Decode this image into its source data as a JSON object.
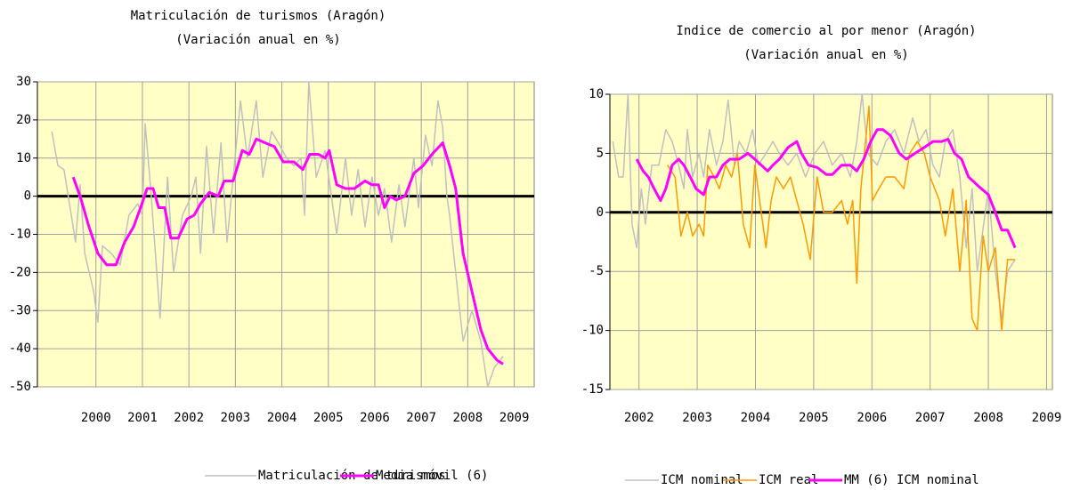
{
  "chart_data": [
    {
      "type": "line",
      "title": "Matriculación de turismos (Aragón)",
      "subtitle": "(Variación anual en %)",
      "xlim": [
        1998.74,
        2009.43
      ],
      "xticks": [
        2000,
        2001,
        2002,
        2003,
        2004,
        2005,
        2006,
        2007,
        2008,
        2009
      ],
      "ylim": [
        -50,
        30
      ],
      "yticks": [
        -50,
        -40,
        -30,
        -20,
        -10,
        0,
        10,
        20,
        30
      ],
      "grid": true,
      "zero_line": true,
      "legend": "bottom",
      "series": [
        {
          "name": "Matriculación de turismos",
          "color": "#c0c0c0",
          "x": [
            1999.05,
            1999.18,
            1999.31,
            1999.47,
            1999.56,
            1999.66,
            1999.76,
            1999.95,
            2000.04,
            2000.14,
            2000.33,
            2000.52,
            2000.71,
            2000.9,
            2001.0,
            2001.06,
            2001.19,
            2001.38,
            2001.54,
            2001.67,
            2001.86,
            2002.05,
            2002.15,
            2002.25,
            2002.38,
            2002.53,
            2002.69,
            2002.82,
            2003.11,
            2003.26,
            2003.45,
            2003.59,
            2003.78,
            2003.97,
            2004.1,
            2004.26,
            2004.41,
            2004.49,
            2004.58,
            2004.74,
            2004.93,
            2005.18,
            2005.37,
            2005.5,
            2005.64,
            2005.79,
            2005.94,
            2006.08,
            2006.21,
            2006.36,
            2006.52,
            2006.65,
            2006.84,
            2006.94,
            2007.09,
            2007.23,
            2007.36,
            2007.46,
            2007.55,
            2007.61,
            2007.74,
            2007.9,
            2008.09,
            2008.28,
            2008.43,
            2008.57,
            2008.76
          ],
          "values": [
            17,
            8,
            7,
            -5,
            -12,
            3,
            -15,
            -25,
            -33,
            -13,
            -15,
            -18,
            -5,
            -2,
            -5,
            19,
            0,
            -32,
            5,
            -20,
            -5,
            0,
            5,
            -15,
            13,
            -10,
            14,
            -12,
            25,
            10,
            25,
            5,
            17,
            13,
            10,
            8,
            10,
            -5,
            30,
            5,
            12,
            -10,
            10,
            -5,
            7,
            -8,
            5,
            -5,
            2,
            -12,
            3,
            -8,
            10,
            -3,
            16,
            8,
            25,
            18,
            0,
            -5,
            -20,
            -38,
            -30,
            -38,
            -50,
            -45,
            -42
          ]
        },
        {
          "name": "Media móvil (6)",
          "color": "#ff00ff",
          "x": [
            1999.51,
            1999.66,
            1999.85,
            2000.04,
            2000.23,
            2000.43,
            2000.62,
            2000.81,
            2000.96,
            2001.1,
            2001.23,
            2001.35,
            2001.48,
            2001.61,
            2001.77,
            2001.96,
            2002.11,
            2002.25,
            2002.44,
            2002.63,
            2002.76,
            2002.95,
            2003.15,
            2003.3,
            2003.45,
            2003.64,
            2003.84,
            2004.03,
            2004.26,
            2004.45,
            2004.6,
            2004.79,
            2004.93,
            2005.02,
            2005.18,
            2005.37,
            2005.56,
            2005.79,
            2005.94,
            2006.08,
            2006.21,
            2006.33,
            2006.46,
            2006.65,
            2006.84,
            2007.04,
            2007.23,
            2007.46,
            2007.61,
            2007.74,
            2007.9,
            2008.09,
            2008.28,
            2008.43,
            2008.63,
            2008.76
          ],
          "values": [
            5,
            0,
            -8,
            -15,
            -18,
            -18,
            -12,
            -8,
            -3,
            2,
            2,
            -3,
            -3,
            -11,
            -11,
            -6,
            -5,
            -2,
            1,
            0,
            4,
            4,
            12,
            11,
            15,
            14,
            13,
            9,
            9,
            7,
            11,
            11,
            10,
            12,
            3,
            2,
            2,
            4,
            3,
            3,
            -3,
            0,
            -1,
            0,
            6,
            8,
            11,
            14,
            8,
            2,
            -15,
            -25,
            -35,
            -40,
            -43,
            -44
          ]
        }
      ]
    },
    {
      "type": "line",
      "title": "Indice de comercio al por menor (Aragón)",
      "subtitle": "(Variación anual en %)",
      "xlim": [
        2001.5,
        2009.1
      ],
      "xticks": [
        2002,
        2003,
        2004,
        2005,
        2006,
        2007,
        2008,
        2009
      ],
      "ylim": [
        -15,
        10
      ],
      "yticks": [
        -15,
        -10,
        -5,
        0,
        5,
        10
      ],
      "grid": true,
      "zero_line": true,
      "legend": "bottom",
      "series": [
        {
          "name": "ICM nominal",
          "color": "#c0c0c0",
          "x": [
            2001.55,
            2001.65,
            2001.73,
            2001.81,
            2001.88,
            2001.96,
            2002.04,
            2002.11,
            2002.22,
            2002.34,
            2002.46,
            2002.57,
            2002.68,
            2002.77,
            2002.83,
            2002.92,
            2003.03,
            2003.11,
            2003.21,
            2003.33,
            2003.44,
            2003.53,
            2003.64,
            2003.72,
            2003.84,
            2003.95,
            2004.05,
            2004.18,
            2004.3,
            2004.41,
            2004.56,
            2004.71,
            2004.86,
            2005.02,
            2005.17,
            2005.32,
            2005.48,
            2005.63,
            2005.74,
            2005.83,
            2005.93,
            2006.09,
            2006.24,
            2006.39,
            2006.55,
            2006.7,
            2006.81,
            2006.93,
            2007.05,
            2007.16,
            2007.26,
            2007.39,
            2007.51,
            2007.62,
            2007.72,
            2007.81,
            2007.92,
            2008.0,
            2008.12,
            2008.23,
            2008.33,
            2008.46
          ],
          "values": [
            6,
            3,
            3,
            10,
            -1,
            -3,
            2,
            -1,
            4,
            4,
            7,
            6,
            4,
            2,
            7,
            3,
            5,
            3,
            7,
            4,
            6,
            9.5,
            4,
            6,
            5,
            7,
            4,
            5,
            6,
            5,
            4,
            5,
            3,
            5,
            6,
            4,
            5,
            3,
            6,
            10,
            5,
            4,
            6,
            7,
            5,
            8,
            6,
            7,
            4,
            3,
            6,
            7,
            3,
            -3,
            2,
            -5,
            -1,
            2,
            -5,
            -9,
            -5,
            -4
          ]
        },
        {
          "name": "ICM real",
          "color": "#ff9900",
          "x": [
            2002.49,
            2002.62,
            2002.72,
            2002.83,
            2002.92,
            2003.03,
            2003.11,
            2003.18,
            2003.29,
            2003.38,
            2003.49,
            2003.59,
            2003.69,
            2003.79,
            2003.9,
            2003.99,
            2004.1,
            2004.18,
            2004.27,
            2004.36,
            2004.48,
            2004.6,
            2004.71,
            2004.82,
            2004.94,
            2005.06,
            2005.17,
            2005.32,
            2005.48,
            2005.58,
            2005.67,
            2005.74,
            2005.81,
            2005.89,
            2005.95,
            2006.01,
            2006.12,
            2006.24,
            2006.39,
            2006.55,
            2006.65,
            2006.78,
            2006.9,
            2007.0,
            2007.16,
            2007.26,
            2007.39,
            2007.51,
            2007.62,
            2007.72,
            2007.81,
            2007.91,
            2008.0,
            2008.12,
            2008.23,
            2008.33,
            2008.46
          ],
          "values": [
            4,
            3,
            -2,
            0,
            -2,
            -1,
            -2,
            4,
            3,
            2,
            4,
            3,
            5,
            -1,
            -3,
            4,
            0,
            -3,
            1,
            3,
            2,
            3,
            1,
            -1,
            -4,
            3,
            0,
            0,
            1,
            -1,
            1,
            -6,
            2,
            6,
            9,
            1,
            2,
            3,
            3,
            2,
            5,
            6,
            5,
            3,
            1,
            -2,
            2,
            -5,
            1,
            -9,
            -10,
            -2,
            -5,
            -3,
            -10,
            -4,
            -4
          ]
        },
        {
          "name": "MM (6) ICM nominal",
          "color": "#ff00ff",
          "x": [
            2001.96,
            2002.07,
            2002.16,
            2002.26,
            2002.37,
            2002.46,
            2002.57,
            2002.68,
            2002.77,
            2002.88,
            2002.98,
            2003.11,
            2003.21,
            2003.33,
            2003.44,
            2003.56,
            2003.72,
            2003.87,
            2003.99,
            2004.1,
            2004.21,
            2004.3,
            2004.41,
            2004.56,
            2004.71,
            2004.79,
            2004.91,
            2005.06,
            2005.22,
            2005.32,
            2005.48,
            2005.63,
            2005.74,
            2005.86,
            2005.98,
            2006.09,
            2006.19,
            2006.32,
            2006.47,
            2006.59,
            2006.74,
            2006.9,
            2007.05,
            2007.2,
            2007.31,
            2007.42,
            2007.54,
            2007.66,
            2007.77,
            2007.88,
            2008.0,
            2008.12,
            2008.23,
            2008.33,
            2008.46
          ],
          "values": [
            4.5,
            3.5,
            3,
            2,
            1,
            2,
            4,
            4.5,
            4,
            3,
            2,
            1.5,
            3,
            3,
            4,
            4.5,
            4.5,
            5,
            4.5,
            4,
            3.5,
            4,
            4.5,
            5.5,
            6,
            5,
            4,
            3.8,
            3.2,
            3.2,
            4,
            4,
            3.5,
            4.5,
            6,
            7,
            7,
            6.5,
            5,
            4.5,
            5,
            5.5,
            6,
            6,
            6.2,
            5,
            4.5,
            3,
            2.5,
            2,
            1.5,
            0,
            -1.5,
            -1.5,
            -3
          ]
        }
      ]
    }
  ]
}
